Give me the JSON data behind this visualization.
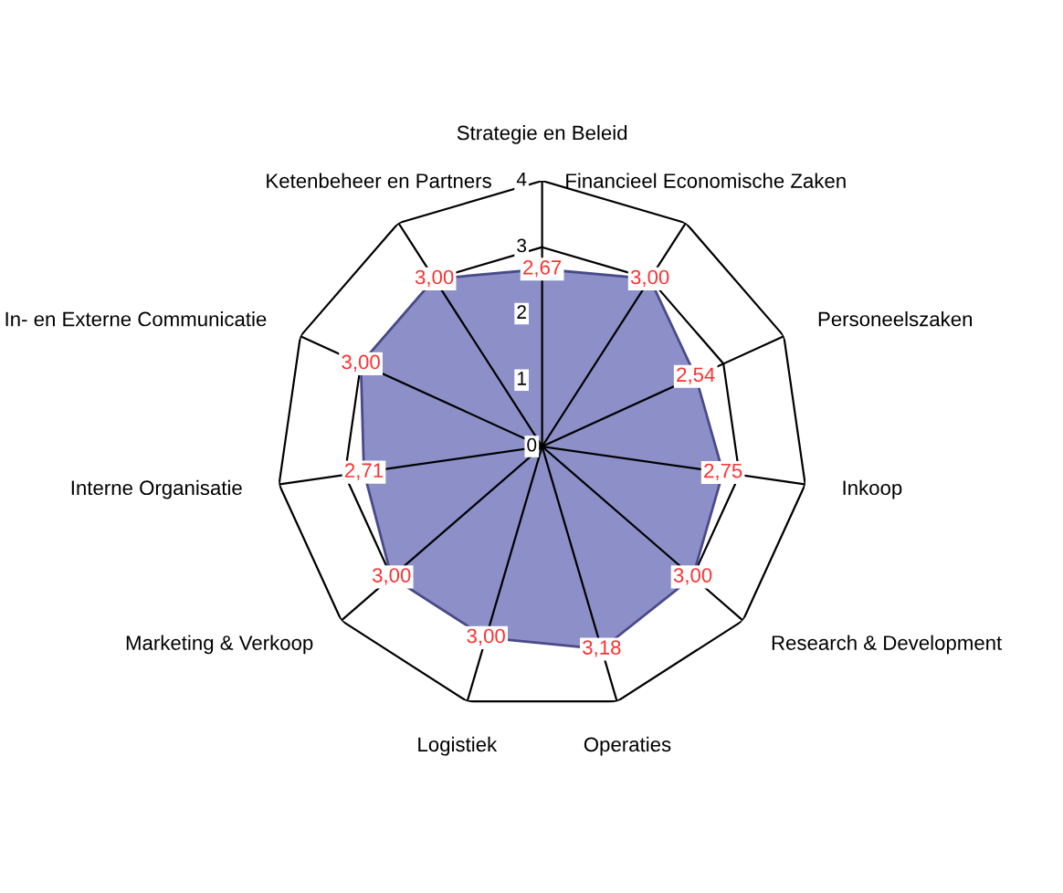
{
  "chart_data": {
    "type": "radar",
    "categories": [
      "Strategie en Beleid",
      "Financieel Economische Zaken",
      "Personeelszaken",
      "Inkoop",
      "Research & Development",
      "Operaties",
      "Logistiek",
      "Marketing & Verkoop",
      "Interne Organisatie",
      "In- en Externe Communicatie",
      "Ketenbeheer en Partners"
    ],
    "series": [
      {
        "color": "#8c8fc8",
        "values": [
          2.67,
          3.0,
          2.54,
          2.75,
          3.0,
          3.18,
          3.0,
          3.0,
          2.71,
          3.0,
          3.0
        ],
        "value_labels": [
          "2,67",
          "3,00",
          "2,54",
          "2,75",
          "3,00",
          "3,18",
          "3,00",
          "3,00",
          "2,71",
          "3,00",
          "3,00"
        ]
      }
    ],
    "ylim": [
      0,
      4
    ],
    "yticks": [
      0,
      1,
      2,
      3,
      4
    ],
    "grid": true
  }
}
